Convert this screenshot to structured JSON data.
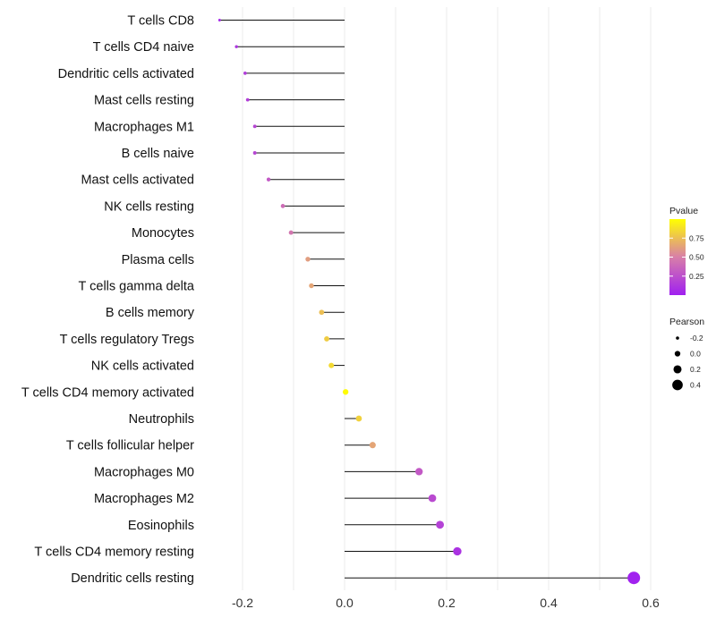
{
  "chart_data": {
    "type": "lollipop",
    "categories": [
      "T cells CD8",
      "T cells CD4 naive",
      "Dendritic cells activated",
      "Mast cells resting",
      "Macrophages M1",
      "B cells naive",
      "Mast cells activated",
      "NK cells resting",
      "Monocytes",
      "Plasma cells",
      "T cells gamma delta",
      "B cells memory",
      "T cells regulatory  Tregs",
      "NK cells activated",
      "T cells CD4 memory activated",
      "Neutrophils",
      "T cells follicular helper",
      "Macrophages M0",
      "Macrophages M2",
      "Eosinophils",
      "T cells CD4 memory resting",
      "Dendritic cells resting"
    ],
    "pearson": [
      -0.245,
      -0.212,
      -0.195,
      -0.19,
      -0.176,
      -0.176,
      -0.149,
      -0.121,
      -0.105,
      -0.072,
      -0.065,
      -0.045,
      -0.035,
      -0.026,
      0.002,
      0.028,
      0.055,
      0.146,
      0.172,
      0.187,
      0.221,
      0.567
    ],
    "pvalue": [
      0.05,
      0.12,
      0.15,
      0.16,
      0.2,
      0.2,
      0.3,
      0.4,
      0.45,
      0.62,
      0.65,
      0.75,
      0.8,
      0.85,
      0.99,
      0.82,
      0.65,
      0.3,
      0.22,
      0.18,
      0.1,
      0.01
    ],
    "xlim": [
      -0.28,
      0.62
    ],
    "xticks": [
      -0.2,
      0.0,
      0.2,
      0.4,
      0.6
    ],
    "xtick_labels": [
      "-0.2",
      "0.0",
      "0.2",
      "0.4",
      "0.6"
    ],
    "xlabel": "",
    "ylabel": "",
    "legend_color": {
      "title": "Pvalue",
      "range": [
        0.0,
        1.0
      ],
      "ticks": [
        0.25,
        0.5,
        0.75
      ],
      "tick_labels": [
        "0.25",
        "0.50",
        "0.75"
      ],
      "low_color": "#a020f0",
      "mid_color": "#d87fa8",
      "high_color": "#ffff00"
    },
    "legend_size": {
      "title": "Pearson",
      "values": [
        -0.2,
        0.0,
        0.2,
        0.4
      ],
      "labels": [
        "-0.2",
        "0.0",
        "0.2",
        "0.4"
      ]
    }
  }
}
